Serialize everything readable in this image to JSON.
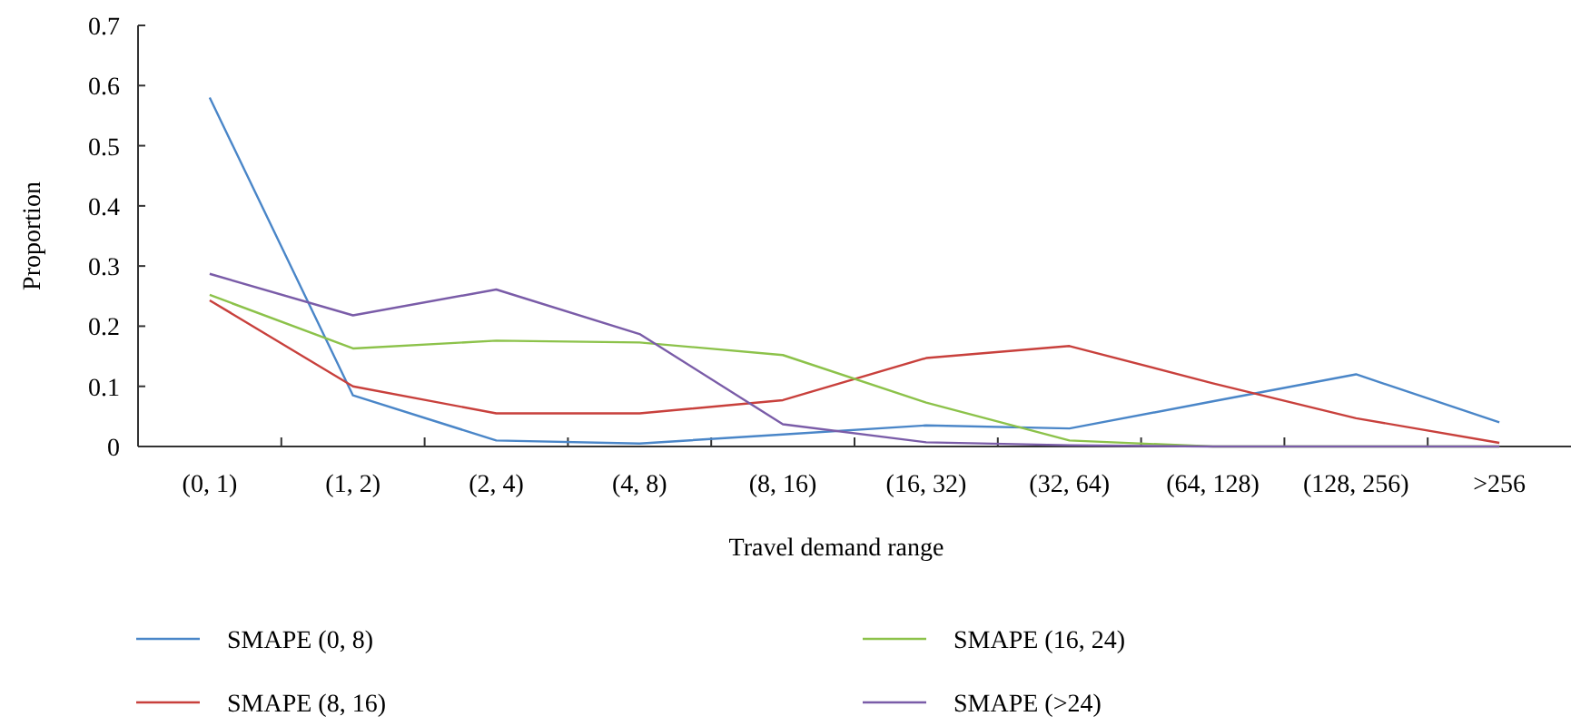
{
  "chart_data": {
    "type": "line",
    "xlabel": "Travel demand range",
    "ylabel": "Proportion",
    "categories": [
      "(0, 1)",
      "(1, 2)",
      "(2, 4)",
      "(4, 8)",
      "(8, 16)",
      "(16, 32)",
      "(32, 64)",
      "(64, 128)",
      "(128, 256)",
      ">256"
    ],
    "series": [
      {
        "name": "SMAPE (0, 8)",
        "color": "#4a86c8",
        "values": [
          0.58,
          0.085,
          0.01,
          0.005,
          0.02,
          0.035,
          0.03,
          0.075,
          0.12,
          0.04
        ]
      },
      {
        "name": "SMAPE (8, 16)",
        "color": "#c8403c",
        "values": [
          0.243,
          0.1,
          0.055,
          0.055,
          0.077,
          0.147,
          0.167,
          0.105,
          0.047,
          0.006
        ]
      },
      {
        "name": "SMAPE (16, 24)",
        "color": "#8cc24a",
        "values": [
          0.252,
          0.163,
          0.176,
          0.173,
          0.152,
          0.073,
          0.01,
          0,
          0,
          0
        ]
      },
      {
        "name": "SMAPE (>24)",
        "color": "#7a5ca8",
        "values": [
          0.287,
          0.218,
          0.261,
          0.187,
          0.037,
          0.007,
          0.002,
          0,
          0,
          0
        ]
      }
    ],
    "ylim": [
      0,
      0.7
    ],
    "yticks": [
      0,
      0.1,
      0.2,
      0.3,
      0.4,
      0.5,
      0.6,
      0.7
    ],
    "grid": false,
    "legend": "bottom",
    "line_style": "solid"
  }
}
